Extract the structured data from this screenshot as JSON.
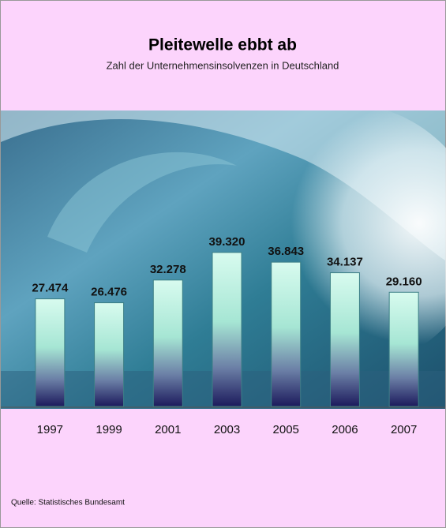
{
  "chart_data": {
    "type": "bar",
    "title": "Pleitewelle ebbt ab",
    "subtitle": "Zahl der Unternehmensinsolvenzen in Deutschland",
    "categories": [
      "1997",
      "1999",
      "2001",
      "2003",
      "2005",
      "2006",
      "2007"
    ],
    "values": [
      27474,
      26476,
      32278,
      39320,
      36843,
      34137,
      29160
    ],
    "value_labels": [
      "27.474",
      "26.476",
      "32.278",
      "39.320",
      "36.843",
      "34.137",
      "29.160"
    ],
    "ylim": [
      0,
      80000
    ],
    "source": "Quelle:  Statistisches Bundesamt"
  }
}
